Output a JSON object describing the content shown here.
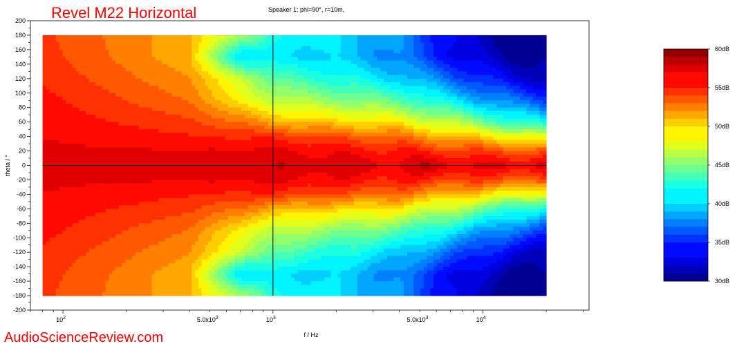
{
  "chart_data": {
    "type": "heatmap",
    "title": "Revel M22 Horizontal",
    "subtitle": "Speaker 1: phi=90°, r=10m,",
    "xlabel": "f / Hz",
    "ylabel": "theta / °",
    "x_scale": "log",
    "xlim": [
      70,
      32000
    ],
    "ylim": [
      -200,
      200
    ],
    "data_extent": {
      "x": [
        80,
        20000
      ],
      "y": [
        -180,
        180
      ]
    },
    "x_ticks": [
      {
        "value": 100,
        "label": "10",
        "exp": "2"
      },
      {
        "value": 500,
        "label": "5.0x10",
        "exp": "2"
      },
      {
        "value": 1000,
        "label": "10",
        "exp": "3"
      },
      {
        "value": 5000,
        "label": "5.0x10",
        "exp": "3"
      },
      {
        "value": 10000,
        "label": "10",
        "exp": "4"
      }
    ],
    "y_ticks": [
      "200",
      "180",
      "160",
      "140",
      "120",
      "100",
      "80",
      "60",
      "40",
      "20",
      "0",
      "-20",
      "-40",
      "-60",
      "-80",
      "-100",
      "-120",
      "-140",
      "-160",
      "-180",
      "-200"
    ],
    "crosshair": {
      "x": 1000,
      "y": 0
    },
    "colorbar": {
      "range_db": [
        30,
        60
      ],
      "labels": [
        "60dB",
        "55dB",
        "50dB",
        "45dB",
        "40dB",
        "35dB",
        "30dB"
      ],
      "colors": [
        "#00007f",
        "#0000ff",
        "#007fff",
        "#00ffff",
        "#7fff7f",
        "#ffff00",
        "#ff7f00",
        "#ff0000",
        "#7f0000"
      ]
    },
    "levels_db": [
      {
        "theta": 0,
        "values": [
          [
            80,
            56.8
          ],
          [
            165,
            57.5
          ],
          [
            400,
            56.8
          ],
          [
            520,
            57.2
          ],
          [
            700,
            57.5
          ],
          [
            1000,
            57.6
          ],
          [
            2000,
            57.2
          ],
          [
            4000,
            57.0
          ],
          [
            5500,
            57.6
          ],
          [
            8000,
            57.0
          ],
          [
            14000,
            56.6
          ],
          [
            20000,
            57.8
          ]
        ]
      },
      {
        "theta": 20,
        "values": [
          [
            80,
            56.8
          ],
          [
            400,
            56.6
          ],
          [
            1000,
            56.8
          ],
          [
            2000,
            56.2
          ],
          [
            4000,
            55.5
          ],
          [
            8000,
            54.5
          ],
          [
            14000,
            53.8
          ],
          [
            20000,
            53.5
          ]
        ]
      },
      {
        "theta": 40,
        "values": [
          [
            80,
            56.5
          ],
          [
            400,
            55.5
          ],
          [
            1000,
            55.0
          ],
          [
            2000,
            54.0
          ],
          [
            4000,
            52.8
          ],
          [
            8000,
            50.5
          ],
          [
            14000,
            48.5
          ],
          [
            20000,
            47.5
          ]
        ]
      },
      {
        "theta": 60,
        "values": [
          [
            80,
            56.2
          ],
          [
            400,
            54.5
          ],
          [
            800,
            52.5
          ],
          [
            1000,
            51.0
          ],
          [
            2000,
            50.0
          ],
          [
            4000,
            49.0
          ],
          [
            8000,
            46.0
          ],
          [
            14000,
            42.5
          ],
          [
            20000,
            41.5
          ]
        ]
      },
      {
        "theta": 90,
        "values": [
          [
            80,
            55.8
          ],
          [
            400,
            53.0
          ],
          [
            800,
            48.0
          ],
          [
            1000,
            47.0
          ],
          [
            2000,
            45.5
          ],
          [
            4000,
            44.0
          ],
          [
            8000,
            40.0
          ],
          [
            14000,
            37.0
          ],
          [
            20000,
            35.5
          ]
        ]
      },
      {
        "theta": 120,
        "values": [
          [
            80,
            55.2
          ],
          [
            400,
            52.0
          ],
          [
            800,
            46.0
          ],
          [
            1000,
            44.0
          ],
          [
            2000,
            42.0
          ],
          [
            4000,
            40.0
          ],
          [
            8000,
            36.0
          ],
          [
            14000,
            33.0
          ],
          [
            20000,
            32.0
          ]
        ]
      },
      {
        "theta": 150,
        "values": [
          [
            80,
            54.8
          ],
          [
            400,
            51.0
          ],
          [
            700,
            40.0
          ],
          [
            1000,
            40.5
          ],
          [
            2000,
            40.0
          ],
          [
            4000,
            37.5
          ],
          [
            8000,
            33.0
          ],
          [
            14000,
            31.0
          ],
          [
            20000,
            30.5
          ]
        ]
      },
      {
        "theta": 180,
        "values": [
          [
            80,
            54.5
          ],
          [
            400,
            51.0
          ],
          [
            800,
            45.0
          ],
          [
            1000,
            42.0
          ],
          [
            2000,
            40.5
          ],
          [
            4000,
            38.0
          ],
          [
            8000,
            32.5
          ],
          [
            14000,
            30.5
          ],
          [
            20000,
            30.5
          ]
        ]
      }
    ]
  }
}
